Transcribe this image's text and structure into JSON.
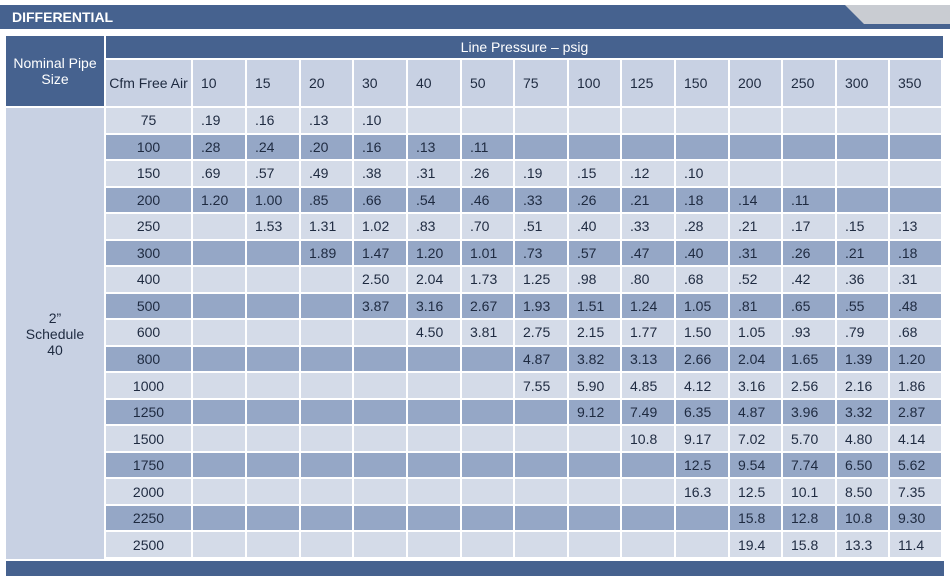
{
  "header": {
    "title": "DIFFERENTIAL"
  },
  "table": {
    "pipe_size_header": "Nominal Pipe Size",
    "line_pressure_label": "Line Pressure – psig",
    "cfm_header": "Cfm Free Air",
    "pressures": [
      "10",
      "15",
      "20",
      "30",
      "40",
      "50",
      "75",
      "100",
      "125",
      "150",
      "200",
      "250",
      "300",
      "350"
    ],
    "pipe_size": [
      "2”",
      "Schedule",
      "40"
    ],
    "rows": [
      {
        "cfm": "75",
        "values": [
          ".19",
          ".16",
          ".13",
          ".10",
          null,
          null,
          null,
          null,
          null,
          null,
          null,
          null,
          null,
          null
        ]
      },
      {
        "cfm": "100",
        "values": [
          ".28",
          ".24",
          ".20",
          ".16",
          ".13",
          ".11",
          null,
          null,
          null,
          null,
          null,
          null,
          null,
          null
        ]
      },
      {
        "cfm": "150",
        "values": [
          ".69",
          ".57",
          ".49",
          ".38",
          ".31",
          ".26",
          ".19",
          ".15",
          ".12",
          ".10",
          null,
          null,
          null,
          null
        ]
      },
      {
        "cfm": "200",
        "values": [
          "1.20",
          "1.00",
          ".85",
          ".66",
          ".54",
          ".46",
          ".33",
          ".26",
          ".21",
          ".18",
          ".14",
          ".11",
          null,
          null
        ]
      },
      {
        "cfm": "250",
        "values": [
          null,
          "1.53",
          "1.31",
          "1.02",
          ".83",
          ".70",
          ".51",
          ".40",
          ".33",
          ".28",
          ".21",
          ".17",
          ".15",
          ".13"
        ]
      },
      {
        "cfm": "300",
        "values": [
          null,
          null,
          "1.89",
          "1.47",
          "1.20",
          "1.01",
          ".73",
          ".57",
          ".47",
          ".40",
          ".31",
          ".26",
          ".21",
          ".18"
        ]
      },
      {
        "cfm": "400",
        "values": [
          null,
          null,
          null,
          "2.50",
          "2.04",
          "1.73",
          "1.25",
          ".98",
          ".80",
          ".68",
          ".52",
          ".42",
          ".36",
          ".31"
        ]
      },
      {
        "cfm": "500",
        "values": [
          null,
          null,
          null,
          "3.87",
          "3.16",
          "2.67",
          "1.93",
          "1.51",
          "1.24",
          "1.05",
          ".81",
          ".65",
          ".55",
          ".48"
        ]
      },
      {
        "cfm": "600",
        "values": [
          null,
          null,
          null,
          null,
          "4.50",
          "3.81",
          "2.75",
          "2.15",
          "1.77",
          "1.50",
          "1.05",
          ".93",
          ".79",
          ".68"
        ]
      },
      {
        "cfm": "800",
        "values": [
          null,
          null,
          null,
          null,
          null,
          null,
          "4.87",
          "3.82",
          "3.13",
          "2.66",
          "2.04",
          "1.65",
          "1.39",
          "1.20"
        ]
      },
      {
        "cfm": "1000",
        "values": [
          null,
          null,
          null,
          null,
          null,
          null,
          "7.55",
          "5.90",
          "4.85",
          "4.12",
          "3.16",
          "2.56",
          "2.16",
          "1.86"
        ]
      },
      {
        "cfm": "1250",
        "values": [
          null,
          null,
          null,
          null,
          null,
          null,
          null,
          "9.12",
          "7.49",
          "6.35",
          "4.87",
          "3.96",
          "3.32",
          "2.87"
        ]
      },
      {
        "cfm": "1500",
        "values": [
          null,
          null,
          null,
          null,
          null,
          null,
          null,
          null,
          "10.8",
          "9.17",
          "7.02",
          "5.70",
          "4.80",
          "4.14"
        ]
      },
      {
        "cfm": "1750",
        "values": [
          null,
          null,
          null,
          null,
          null,
          null,
          null,
          null,
          null,
          "12.5",
          "9.54",
          "7.74",
          "6.50",
          "5.62"
        ]
      },
      {
        "cfm": "2000",
        "values": [
          null,
          null,
          null,
          null,
          null,
          null,
          null,
          null,
          null,
          "16.3",
          "12.5",
          "10.1",
          "8.50",
          "7.35"
        ]
      },
      {
        "cfm": "2250",
        "values": [
          null,
          null,
          null,
          null,
          null,
          null,
          null,
          null,
          null,
          null,
          "15.8",
          "12.8",
          "10.8",
          "9.30"
        ]
      },
      {
        "cfm": "2500",
        "values": [
          null,
          null,
          null,
          null,
          null,
          null,
          null,
          null,
          null,
          null,
          "19.4",
          "15.8",
          "13.3",
          "11.4"
        ]
      }
    ]
  }
}
